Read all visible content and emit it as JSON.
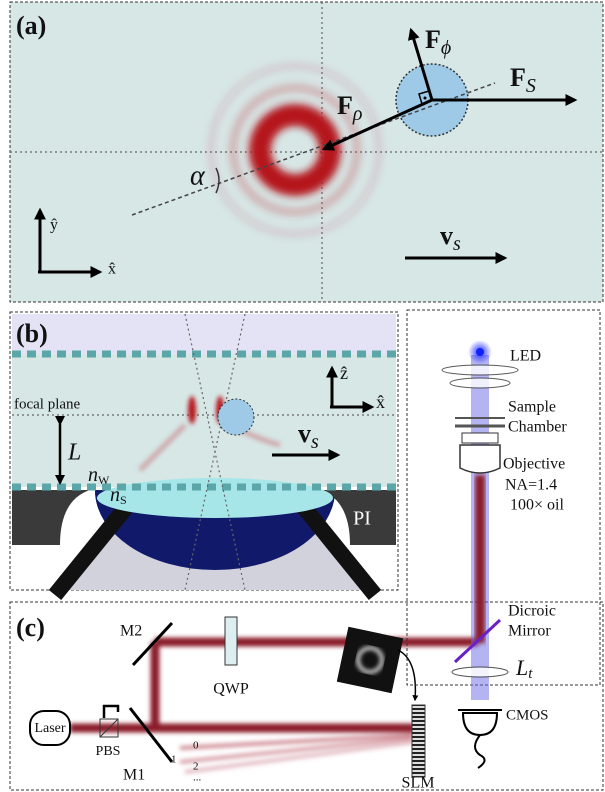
{
  "panel_a": {
    "label": "(a)",
    "force_phi": {
      "symbol": "F",
      "subscript": "ϕ"
    },
    "force_rho": {
      "symbol": "F",
      "subscript": "ρ"
    },
    "force_s": {
      "symbol": "F",
      "subscript": "S"
    },
    "angle": "α",
    "axis_y": "ŷ",
    "axis_x": "x̂",
    "velocity": {
      "symbol": "v",
      "subscript": "s"
    }
  },
  "panel_b": {
    "label": "(b)",
    "focal_plane": "focal plane",
    "distance": "L",
    "medium_water": {
      "symbol": "n",
      "subscript": "W"
    },
    "medium_substrate": {
      "symbol": "n",
      "subscript": "S"
    },
    "piezo": "PI",
    "axis_z": "ẑ",
    "axis_x": "x̂",
    "velocity": {
      "symbol": "v",
      "subscript": "s"
    }
  },
  "microscope": {
    "led": "LED",
    "sample_chamber": [
      "Sample",
      "Chamber"
    ],
    "objective": [
      "Objective",
      "NA=1.4",
      "100× oil"
    ],
    "dichroic": [
      "Dicroic",
      "Mirror"
    ],
    "lens": {
      "symbol": "L",
      "subscript": "t"
    },
    "camera": "CMOS"
  },
  "panel_c": {
    "label": "(c)",
    "mirror_2": "M2",
    "waveplate": "QWP",
    "laser": "Laser",
    "beam_splitter": "PBS",
    "mirror_1": "M1",
    "slm": "SLM",
    "orders": [
      "1",
      "0",
      "2",
      "..."
    ]
  }
}
